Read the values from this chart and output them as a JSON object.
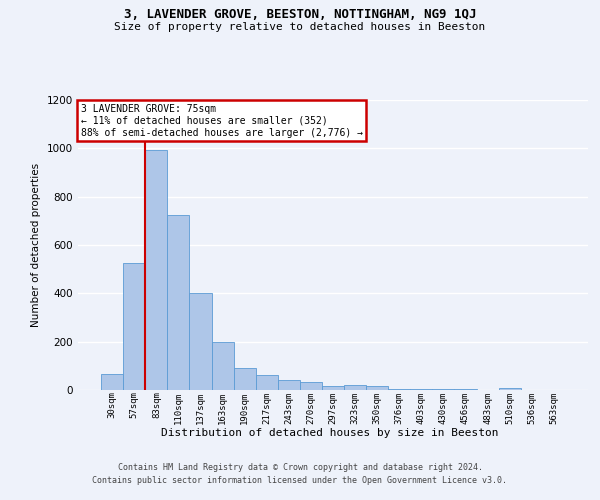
{
  "title": "3, LAVENDER GROVE, BEESTON, NOTTINGHAM, NG9 1QJ",
  "subtitle": "Size of property relative to detached houses in Beeston",
  "xlabel": "Distribution of detached houses by size in Beeston",
  "ylabel": "Number of detached properties",
  "footer_line1": "Contains HM Land Registry data © Crown copyright and database right 2024.",
  "footer_line2": "Contains public sector information licensed under the Open Government Licence v3.0.",
  "categories": [
    "30sqm",
    "57sqm",
    "83sqm",
    "110sqm",
    "137sqm",
    "163sqm",
    "190sqm",
    "217sqm",
    "243sqm",
    "270sqm",
    "297sqm",
    "323sqm",
    "350sqm",
    "376sqm",
    "403sqm",
    "430sqm",
    "456sqm",
    "483sqm",
    "510sqm",
    "536sqm",
    "563sqm"
  ],
  "values": [
    65,
    525,
    995,
    725,
    400,
    198,
    90,
    62,
    40,
    33,
    15,
    20,
    18,
    3,
    3,
    3,
    3,
    0,
    10,
    0,
    0
  ],
  "bar_color": "#aec6e8",
  "bar_edge_color": "#5b9bd5",
  "annotation_text_line1": "3 LAVENDER GROVE: 75sqm",
  "annotation_text_line2": "← 11% of detached houses are smaller (352)",
  "annotation_text_line3": "88% of semi-detached houses are larger (2,776) →",
  "annotation_box_color": "#ffffff",
  "annotation_box_edge_color": "#cc0000",
  "vline_color": "#cc0000",
  "background_color": "#eef2fa",
  "grid_color": "#ffffff",
  "ylim": [
    0,
    1200
  ],
  "yticks": [
    0,
    200,
    400,
    600,
    800,
    1000,
    1200
  ],
  "vline_x": 1.5
}
